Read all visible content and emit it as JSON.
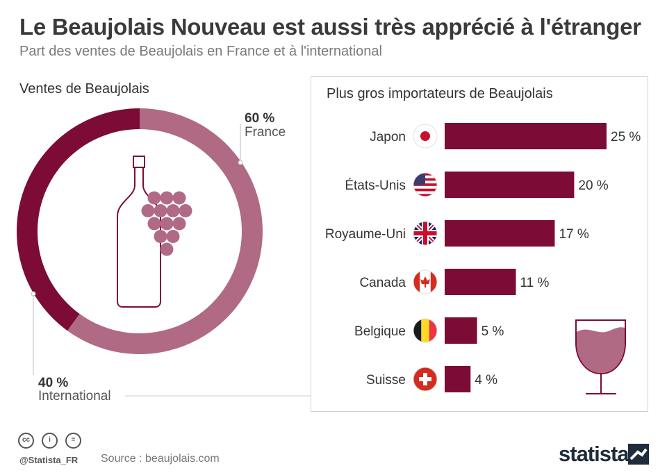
{
  "header": {
    "title": "Le Beaujolais Nouveau est aussi très apprécié à l'étranger",
    "subtitle": "Part des ventes de Beaujolais en France et à l'international"
  },
  "colors": {
    "dark": "#7c0b35",
    "light": "#b06a84",
    "grape": "#b06a84"
  },
  "chart_data": [
    {
      "type": "pie",
      "title": "Ventes de Beaujolais",
      "categories": [
        "France",
        "International"
      ],
      "values": [
        60,
        40
      ],
      "value_labels": [
        "60 %",
        "40 %"
      ],
      "donut": true
    },
    {
      "type": "bar",
      "orientation": "horizontal",
      "title": "Plus gros importateurs de Beaujolais",
      "categories": [
        "Japon",
        "États-Unis",
        "Royaume-Uni",
        "Canada",
        "Belgique",
        "Suisse"
      ],
      "values": [
        25,
        20,
        17,
        11,
        5,
        4
      ],
      "value_labels": [
        "25 %",
        "20 %",
        "17 %",
        "11 %",
        "5 %",
        "4 %"
      ],
      "flag_icons": [
        "japan-flag-icon",
        "usa-flag-icon",
        "uk-flag-icon",
        "canada-flag-icon",
        "belgium-flag-icon",
        "switzerland-flag-icon"
      ],
      "xlim": [
        0,
        25
      ]
    }
  ],
  "footer": {
    "handle": "@Statista_FR",
    "source": "Source : beaujolais.com",
    "brand": "statista",
    "license_icons": [
      "cc-icon",
      "by-icon",
      "nd-icon"
    ],
    "license_glyphs": [
      "cc",
      "i",
      "="
    ]
  }
}
